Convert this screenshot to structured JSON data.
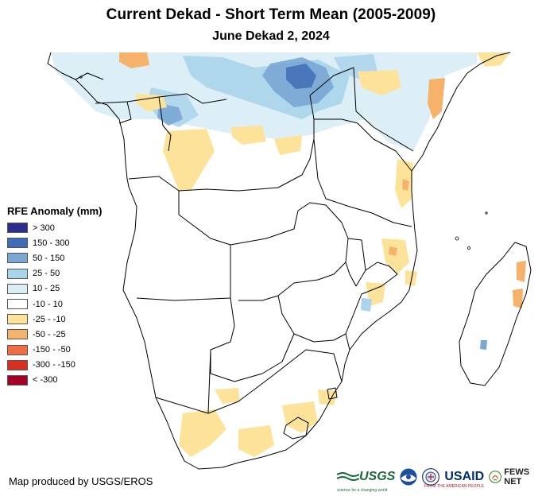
{
  "title": "Current Dekad - Short Term Mean (2005-2009)",
  "subtitle": "June Dekad 2, 2024",
  "legend": {
    "title": "RFE Anomaly (mm)",
    "items": [
      {
        "label": "> 300",
        "color": "#2c2e8f"
      },
      {
        "label": "150 - 300",
        "color": "#3f6db5"
      },
      {
        "label": "50 - 150",
        "color": "#7aa7d4"
      },
      {
        "label": "25 - 50",
        "color": "#a9d4ea"
      },
      {
        "label": "10 - 25",
        "color": "#dbeef6"
      },
      {
        "label": "-10 - 10",
        "color": "#ffffff"
      },
      {
        "label": "-25 - -10",
        "color": "#fde29a"
      },
      {
        "label": "-50 - -25",
        "color": "#f6b26b"
      },
      {
        "label": "-150 - -50",
        "color": "#ef6c45"
      },
      {
        "label": "-300 - -150",
        "color": "#d7301f"
      },
      {
        "label": "< -300",
        "color": "#a50026"
      }
    ]
  },
  "credit": "Map produced by USGS/EROS",
  "logos": {
    "usgs": "USGS",
    "usgs_tagline": "science for a changing world",
    "usaid": "USAID",
    "usaid_tagline": "FROM THE AMERICAN PEOPLE",
    "fews": "FEWS NET"
  }
}
